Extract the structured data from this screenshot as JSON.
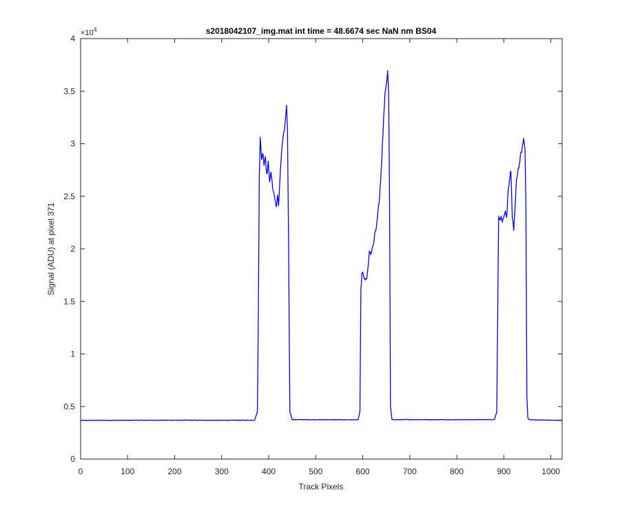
{
  "chart_data": {
    "type": "line",
    "title": "s2018042107_img.mat int time = 48.6674 sec  NaN nm BS04",
    "xlabel": "Track Pixels",
    "ylabel": "Signal (ADU) at pixel 371",
    "xlim": [
      0,
      1024
    ],
    "ylim": [
      0,
      40000
    ],
    "x_ticks": [
      0,
      100,
      200,
      300,
      400,
      500,
      600,
      700,
      800,
      900,
      1000
    ],
    "y_ticks": [
      0,
      0.5,
      1,
      1.5,
      2,
      2.5,
      3,
      3.5,
      4
    ],
    "y_tick_labels": [
      "0",
      "0.5",
      "1",
      "1.5",
      "2",
      "2.5",
      "3",
      "3.5",
      "4"
    ],
    "y_exponent": {
      "base": "×10",
      "power": "4"
    },
    "grid": false,
    "line_color": "#0000ff",
    "series": [
      {
        "values_note": "",
        "x": [
          0,
          100,
          200,
          300,
          370,
          376,
          378,
          380,
          382,
          385,
          388,
          390,
          393,
          396,
          399,
          402,
          405,
          408,
          410,
          413,
          416,
          419,
          421,
          424,
          427,
          430,
          433,
          436,
          438,
          440,
          442,
          445,
          450,
          500,
          590,
          594,
          596,
          598,
          600,
          603,
          606,
          609,
          612,
          614,
          617,
          620,
          623,
          626,
          629,
          632,
          635,
          638,
          641,
          644,
          647,
          650,
          653,
          655,
          657,
          659,
          662,
          670,
          700,
          800,
          880,
          885,
          887,
          889,
          891,
          894,
          897,
          900,
          903,
          906,
          909,
          912,
          915,
          918,
          921,
          924,
          927,
          930,
          933,
          936,
          939,
          942,
          945,
          947,
          949,
          951,
          954,
          960,
          1000,
          1024
        ],
        "y": [
          3680,
          3690,
          3700,
          3690,
          3700,
          4500,
          14000,
          27000,
          30500,
          28500,
          29200,
          28000,
          28800,
          27000,
          28200,
          26500,
          27200,
          26000,
          25500,
          24800,
          24000,
          25000,
          24000,
          26800,
          29000,
          30500,
          31200,
          32500,
          33500,
          31000,
          22000,
          4500,
          3760,
          3750,
          3740,
          4500,
          16000,
          17600,
          17700,
          17200,
          17000,
          17300,
          18500,
          19800,
          19400,
          20000,
          20500,
          21500,
          22000,
          23500,
          24500,
          26500,
          29000,
          32000,
          34500,
          35500,
          37000,
          35000,
          25000,
          5000,
          3760,
          3750,
          3760,
          3750,
          3760,
          4500,
          14000,
          23000,
          22800,
          23000,
          22600,
          22900,
          23500,
          22900,
          25500,
          26500,
          27500,
          23000,
          21800,
          24000,
          26500,
          27500,
          28000,
          29000,
          29500,
          30500,
          29500,
          24000,
          6000,
          3900,
          3750,
          3740,
          3700,
          3690
        ]
      }
    ]
  }
}
